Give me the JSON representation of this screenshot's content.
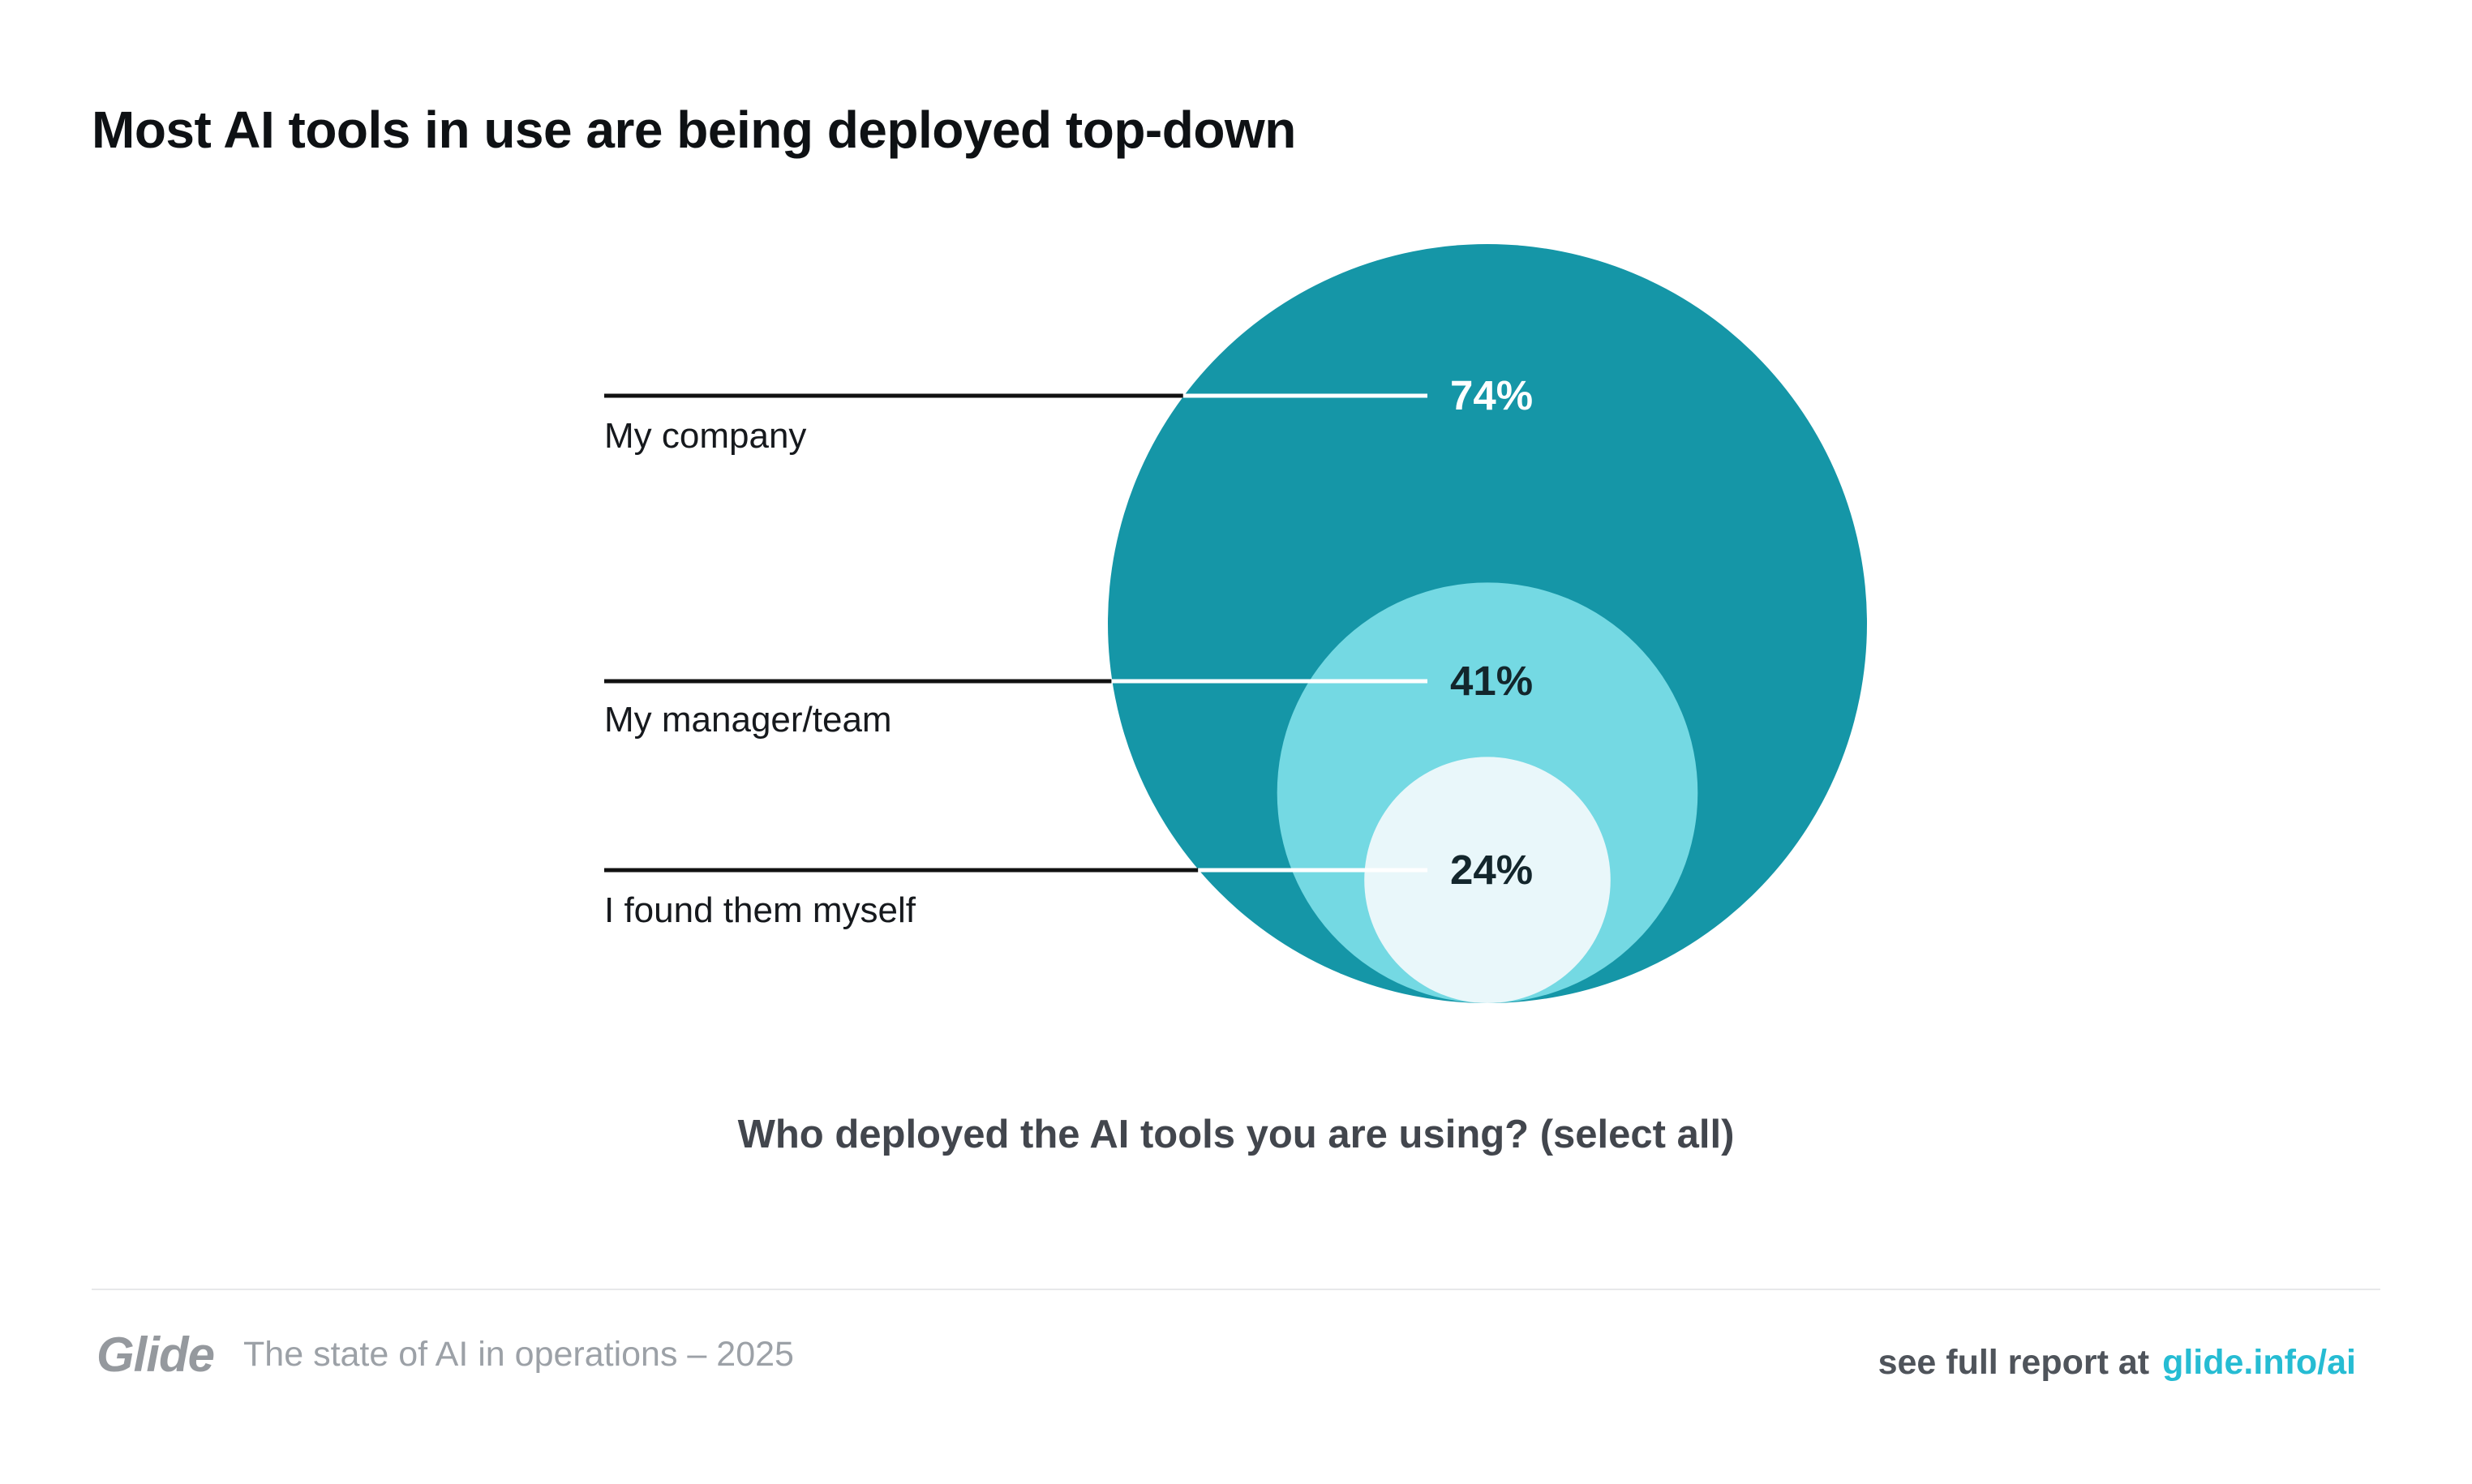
{
  "title": "Most AI tools in use are being deployed top-down",
  "chart_data": {
    "type": "nested_circles",
    "title": "Most AI tools in use are being deployed top-down",
    "question_caption": "Who deployed the AI tools you are using? (select all)",
    "unit": "%",
    "categories": [
      "My company",
      "My manager/team",
      "I found them myself"
    ],
    "values": [
      74,
      41,
      24
    ],
    "items": [
      {
        "label": "My company",
        "value": 74,
        "value_label": "74%",
        "color": "#1596A7",
        "value_label_color": "#FFFFFF"
      },
      {
        "label": "My manager/team",
        "value": 41,
        "value_label": "41%",
        "color": "#74D9E3",
        "value_label_color": "#13262C"
      },
      {
        "label": "I found them myself",
        "value": 24,
        "value_label": "24%",
        "color": "#E9F7FA",
        "value_label_color": "#13262C"
      }
    ],
    "layout": {
      "nesting": "circles tangent at shared bottom point",
      "radius_proportional_to": "value",
      "leader_lines": "left, black outside largest circle, white inside",
      "legend": "none",
      "grid": "off"
    }
  },
  "colors": {
    "background": "#FFFFFF",
    "title": "#0E1114",
    "caption": "#42464D",
    "leader_line": "#111111",
    "leader_line_inner": "#FFFFFF",
    "divider": "#E7E8EA"
  },
  "footer": {
    "brand": "Glide",
    "tagline": "The state of AI in operations – 2025",
    "report_prefix": "see full report at",
    "report_link": "glide.info/ai",
    "link_color": "#26BCD3"
  }
}
